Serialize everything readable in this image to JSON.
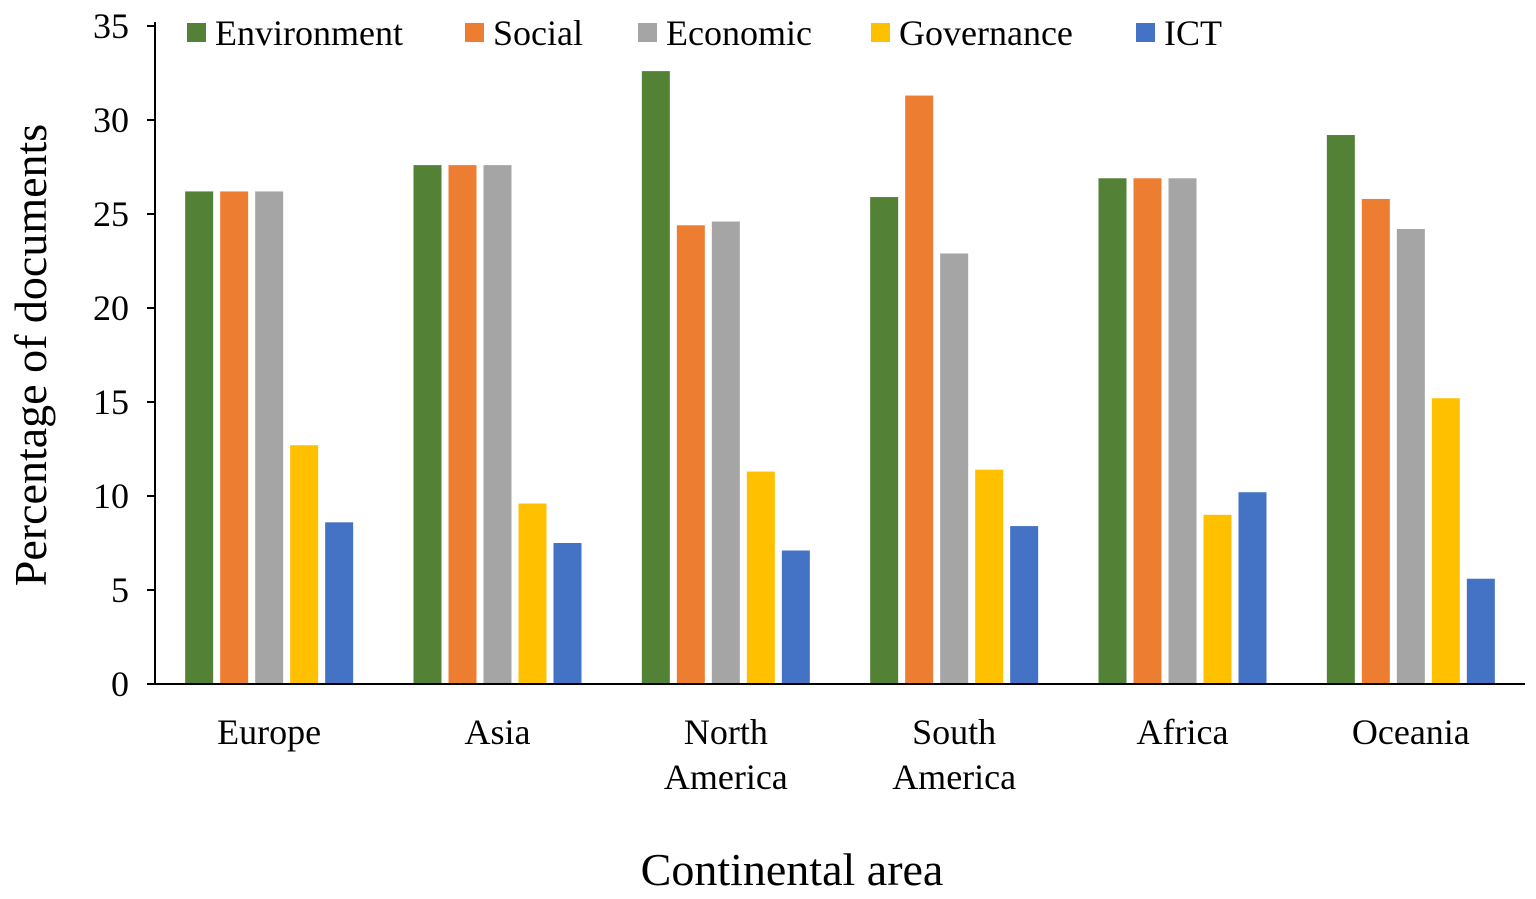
{
  "chart_data": {
    "type": "bar",
    "title": "",
    "xlabel": "Continental area",
    "ylabel": "Percentage of documents",
    "ylim": [
      0,
      35
    ],
    "yticks": [
      0,
      5,
      10,
      15,
      20,
      25,
      30,
      35
    ],
    "categories": [
      [
        "Europe"
      ],
      [
        "Asia"
      ],
      [
        "North",
        "America"
      ],
      [
        "South",
        "America"
      ],
      [
        "Africa"
      ],
      [
        "Oceania"
      ]
    ],
    "legend_position": "top",
    "series": [
      {
        "name": "Environment",
        "color": "#538135",
        "values": [
          26.2,
          27.6,
          32.6,
          25.9,
          26.9,
          29.2
        ]
      },
      {
        "name": "Social",
        "color": "#ED7D31",
        "values": [
          26.2,
          27.6,
          24.4,
          31.3,
          26.9,
          25.8
        ]
      },
      {
        "name": "Economic",
        "color": "#A5A5A5",
        "values": [
          26.2,
          27.6,
          24.6,
          22.9,
          26.9,
          24.2
        ]
      },
      {
        "name": "Governance",
        "color": "#FFC000",
        "values": [
          12.7,
          9.6,
          11.3,
          11.4,
          9.0,
          15.2
        ]
      },
      {
        "name": "ICT",
        "color": "#4472C4",
        "values": [
          8.6,
          7.5,
          7.1,
          8.4,
          10.2,
          5.6
        ]
      }
    ]
  }
}
